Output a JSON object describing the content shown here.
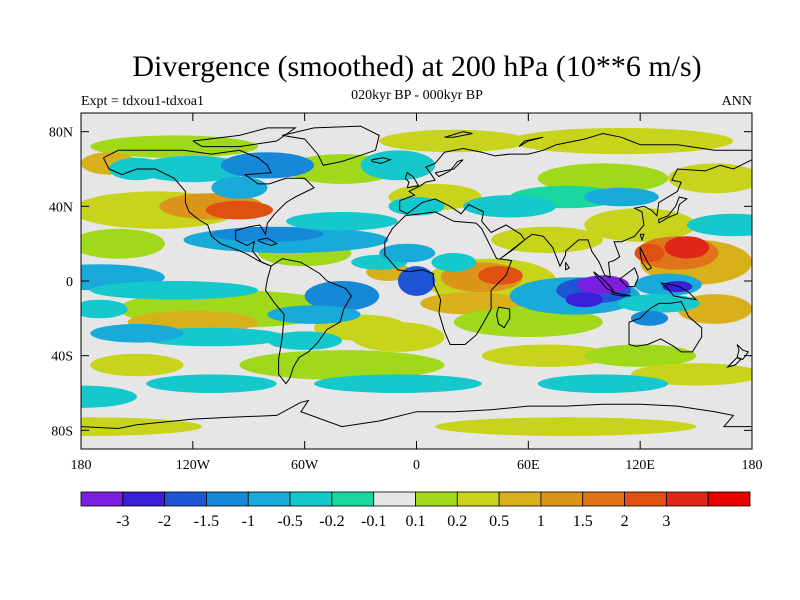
{
  "title": "Divergence (smoothed) at 200 hPa (10**6 m/s)",
  "subtitle": "020kyr BP - 000kyr BP",
  "left_label": "Expt = tdxou1-tdxoa1",
  "right_label": "ANN",
  "map": {
    "lon_range": [
      -180,
      180
    ],
    "lat_range": [
      -90,
      90
    ],
    "x_ticks": [
      {
        "lon": -180,
        "label": "180"
      },
      {
        "lon": -120,
        "label": "120W"
      },
      {
        "lon": -60,
        "label": "60W"
      },
      {
        "lon": 0,
        "label": "0"
      },
      {
        "lon": 60,
        "label": "60E"
      },
      {
        "lon": 120,
        "label": "120E"
      },
      {
        "lon": 180,
        "label": "180"
      }
    ],
    "y_ticks": [
      {
        "lat": 80,
        "label": "80N"
      },
      {
        "lat": 40,
        "label": "40N"
      },
      {
        "lat": 0,
        "label": "0"
      },
      {
        "lat": -40,
        "label": "40S"
      },
      {
        "lat": -80,
        "label": "80S"
      }
    ],
    "background_color": "#e6e6e6"
  },
  "colorbar": {
    "colors": [
      "#7a1fe0",
      "#3a1fd8",
      "#1e55d4",
      "#1688d8",
      "#18aad8",
      "#14c8cc",
      "#18d8a0",
      "#e6e6e6",
      "#a0d81a",
      "#c8d41c",
      "#d8b01c",
      "#dc941a",
      "#e0741a",
      "#e05010",
      "#e02818",
      "#e80000"
    ],
    "labels": [
      "-3",
      "-2",
      "-1.5",
      "-1",
      "-0.5",
      "-0.2",
      "-0.1",
      "0.1",
      "0.2",
      "0.5",
      "1",
      "1.5",
      "2",
      "3"
    ]
  }
}
